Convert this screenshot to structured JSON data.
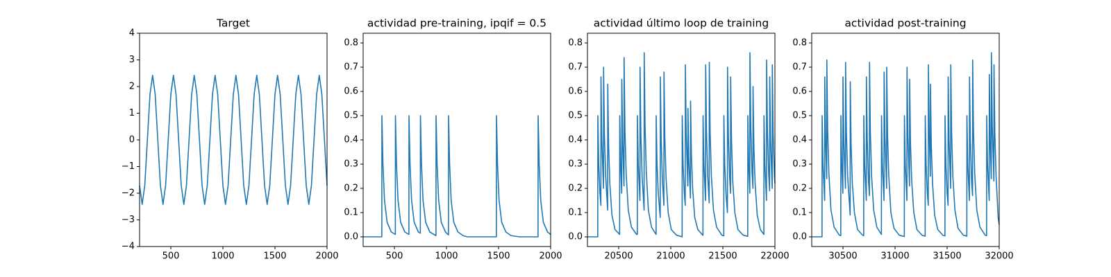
{
  "chart_data": [
    {
      "type": "line",
      "title": "Target",
      "color": "#1f77b4",
      "x": [
        200,
        225,
        250,
        275,
        300,
        325,
        350,
        375,
        400,
        425,
        450,
        475,
        500,
        525,
        550,
        575,
        600,
        625,
        650,
        675,
        700,
        725,
        750,
        775,
        800,
        825,
        850,
        875,
        900,
        925,
        950,
        975,
        1000,
        1025,
        1050,
        1075,
        1100,
        1125,
        1150,
        1175,
        1200,
        1225,
        1250,
        1275,
        1300,
        1325,
        1350,
        1375,
        1400,
        1425,
        1450,
        1475,
        1500,
        1525,
        1550,
        1575,
        1600,
        1625,
        1650,
        1675,
        1700,
        1725,
        1750,
        1775,
        1800,
        1825,
        1850,
        1875,
        1900,
        1925,
        1950,
        1975,
        2000
      ],
      "values": [
        -1.71,
        -2.42,
        -1.71,
        0,
        1.71,
        2.42,
        1.71,
        0,
        -1.71,
        -2.42,
        -1.71,
        0,
        1.71,
        2.42,
        1.71,
        0,
        -1.71,
        -2.42,
        -1.71,
        0,
        1.71,
        2.42,
        1.71,
        0,
        -1.71,
        -2.42,
        -1.71,
        0,
        1.71,
        2.42,
        1.71,
        0,
        -1.71,
        -2.42,
        -1.71,
        0,
        1.71,
        2.42,
        1.71,
        0,
        -1.71,
        -2.42,
        -1.71,
        0,
        1.71,
        2.42,
        1.71,
        0,
        -1.71,
        -2.42,
        -1.71,
        0,
        1.71,
        2.42,
        1.71,
        0,
        -1.71,
        -2.42,
        -1.71,
        0,
        1.71,
        2.42,
        1.71,
        0,
        -1.71,
        -2.42,
        -1.71,
        0,
        1.71,
        2.42,
        1.71,
        0,
        -1.71
      ],
      "xlim": [
        200,
        2000
      ],
      "xticks": [
        500,
        1000,
        1500,
        2000
      ],
      "ylim": [
        -4,
        4
      ],
      "yticks": [
        {
          "value": -4,
          "label": "−4"
        },
        {
          "value": -3,
          "label": "−3"
        },
        {
          "value": -2,
          "label": "−2"
        },
        {
          "value": -1,
          "label": "−1"
        },
        0,
        1,
        2,
        3,
        4
      ]
    },
    {
      "type": "line",
      "title": "actividad pre-training, ipqif = 0.5",
      "color": "#1f77b4",
      "x": [
        200,
        379,
        380,
        390,
        405,
        430,
        470,
        509,
        510,
        520,
        535,
        560,
        600,
        639,
        640,
        650,
        665,
        690,
        730,
        749,
        750,
        760,
        775,
        800,
        840,
        899,
        900,
        910,
        925,
        950,
        990,
        1019,
        1020,
        1030,
        1045,
        1070,
        1110,
        1160,
        1200,
        1479,
        1480,
        1490,
        1505,
        1530,
        1570,
        1620,
        1700,
        1879,
        1880,
        1890,
        1905,
        1930,
        1970,
        2000
      ],
      "values": [
        0,
        0,
        0.5,
        0.3,
        0.15,
        0.06,
        0.02,
        0.01,
        0.5,
        0.3,
        0.15,
        0.06,
        0.02,
        0.01,
        0.5,
        0.3,
        0.15,
        0.06,
        0.02,
        0.015,
        0.5,
        0.3,
        0.15,
        0.06,
        0.02,
        0.005,
        0.5,
        0.3,
        0.15,
        0.06,
        0.02,
        0.008,
        0.5,
        0.3,
        0.15,
        0.06,
        0.02,
        0.005,
        0,
        0,
        0.5,
        0.3,
        0.15,
        0.06,
        0.02,
        0.005,
        0,
        0,
        0.5,
        0.3,
        0.15,
        0.06,
        0.02,
        0.01
      ],
      "xlim": [
        200,
        2000
      ],
      "xticks": [
        500,
        1000,
        1500,
        2000
      ],
      "ylim": [
        -0.04,
        0.84
      ],
      "yticks": [
        {
          "value": 0,
          "label": "0.0"
        },
        0.1,
        0.2,
        0.3,
        0.4,
        0.5,
        0.6,
        0.7,
        0.8
      ]
    },
    {
      "type": "line",
      "title": "actividad último loop de training",
      "color": "#1f77b4",
      "x": [
        20200,
        20299,
        20300,
        20308,
        20320,
        20329,
        20330,
        20338,
        20354,
        20355,
        20363,
        20375,
        20394,
        20395,
        20403,
        20415,
        20435,
        20465,
        20509,
        20510,
        20518,
        20529,
        20530,
        20538,
        20551,
        20552,
        20560,
        20572,
        20592,
        20622,
        20672,
        20679,
        20680,
        20688,
        20704,
        20705,
        20713,
        20725,
        20744,
        20745,
        20753,
        20765,
        20785,
        20815,
        20859,
        20860,
        20868,
        20880,
        20899,
        20900,
        20908,
        20920,
        20934,
        20935,
        20943,
        20955,
        20975,
        21005,
        21055,
        21109,
        21110,
        21118,
        21130,
        21139,
        21140,
        21148,
        21164,
        21165,
        21173,
        21189,
        21190,
        21198,
        21210,
        21230,
        21260,
        21309,
        21310,
        21318,
        21334,
        21335,
        21343,
        21355,
        21369,
        21370,
        21378,
        21390,
        21410,
        21440,
        21490,
        21509,
        21510,
        21518,
        21530,
        21544,
        21545,
        21553,
        21565,
        21574,
        21575,
        21583,
        21595,
        21615,
        21645,
        21695,
        21739,
        21740,
        21748,
        21759,
        21760,
        21768,
        21780,
        21789,
        21790,
        21798,
        21810,
        21830,
        21860,
        21894,
        21895,
        21903,
        21919,
        21920,
        21928,
        21940,
        21949,
        21950,
        21958,
        21974,
        21975,
        21983,
        21995,
        22000
      ],
      "values": [
        0,
        0,
        0.5,
        0.3,
        0.18,
        0.13,
        0.66,
        0.4,
        0.2,
        0.7,
        0.42,
        0.25,
        0.11,
        0.63,
        0.38,
        0.22,
        0.09,
        0.03,
        0.01,
        0.5,
        0.3,
        0.18,
        0.65,
        0.39,
        0.21,
        0.74,
        0.44,
        0.26,
        0.11,
        0.04,
        0.01,
        0.01,
        0.5,
        0.3,
        0.15,
        0.7,
        0.42,
        0.25,
        0.11,
        0.76,
        0.46,
        0.27,
        0.11,
        0.04,
        0.01,
        0.5,
        0.3,
        0.18,
        0.08,
        0.66,
        0.4,
        0.23,
        0.13,
        0.68,
        0.41,
        0.24,
        0.1,
        0.03,
        0.007,
        0,
        0.5,
        0.3,
        0.18,
        0.13,
        0.71,
        0.43,
        0.21,
        0.53,
        0.32,
        0.16,
        0.56,
        0.34,
        0.2,
        0.08,
        0.03,
        0.006,
        0.5,
        0.3,
        0.15,
        0.71,
        0.43,
        0.25,
        0.14,
        0.72,
        0.43,
        0.25,
        0.11,
        0.04,
        0.007,
        0.004,
        0.5,
        0.3,
        0.18,
        0.1,
        0.7,
        0.42,
        0.25,
        0.18,
        0.66,
        0.4,
        0.23,
        0.1,
        0.03,
        0.007,
        0.002,
        0.5,
        0.3,
        0.18,
        0.76,
        0.46,
        0.27,
        0.2,
        0.62,
        0.37,
        0.22,
        0.09,
        0.03,
        0.01,
        0.5,
        0.3,
        0.15,
        0.73,
        0.44,
        0.26,
        0.19,
        0.66,
        0.4,
        0.2,
        0.71,
        0.43,
        0.25,
        0.22
      ],
      "xlim": [
        20200,
        22000
      ],
      "xticks": [
        20500,
        21000,
        21500,
        22000
      ],
      "ylim": [
        -0.04,
        0.84
      ],
      "yticks": [
        {
          "value": 0,
          "label": "0.0"
        },
        0.1,
        0.2,
        0.3,
        0.4,
        0.5,
        0.6,
        0.7,
        0.8
      ]
    },
    {
      "type": "line",
      "title": "actividad post-training",
      "color": "#1f77b4",
      "x": [
        30200,
        30299,
        30300,
        30308,
        30324,
        30325,
        30333,
        30344,
        30345,
        30353,
        30365,
        30385,
        30415,
        30465,
        30479,
        30480,
        30488,
        30499,
        30500,
        30508,
        30524,
        30525,
        30533,
        30545,
        30569,
        30570,
        30578,
        30590,
        30610,
        30640,
        30690,
        30699,
        30700,
        30708,
        30724,
        30725,
        30733,
        30745,
        30754,
        30755,
        30763,
        30775,
        30795,
        30825,
        30869,
        30870,
        30878,
        30894,
        30895,
        30903,
        30919,
        30920,
        30928,
        30940,
        30960,
        30990,
        31040,
        31089,
        31090,
        31098,
        31114,
        31115,
        31123,
        31139,
        31140,
        31148,
        31160,
        31180,
        31210,
        31260,
        31289,
        31290,
        31298,
        31310,
        31319,
        31320,
        31328,
        31339,
        31340,
        31348,
        31360,
        31380,
        31410,
        31460,
        31479,
        31480,
        31488,
        31500,
        31509,
        31510,
        31518,
        31534,
        31535,
        31543,
        31555,
        31575,
        31605,
        31655,
        31689,
        31690,
        31698,
        31714,
        31715,
        31723,
        31735,
        31744,
        31745,
        31753,
        31765,
        31785,
        31815,
        31865,
        31879,
        31880,
        31888,
        31904,
        31905,
        31913,
        31924,
        31925,
        31933,
        31949,
        31950,
        31958,
        31970,
        31990,
        32000
      ],
      "values": [
        0,
        0,
        0.5,
        0.3,
        0.15,
        0.66,
        0.4,
        0.24,
        0.73,
        0.44,
        0.26,
        0.11,
        0.04,
        0.007,
        0.005,
        0.5,
        0.3,
        0.18,
        0.66,
        0.4,
        0.2,
        0.72,
        0.43,
        0.25,
        0.09,
        0.64,
        0.38,
        0.22,
        0.1,
        0.03,
        0.006,
        0.005,
        0.5,
        0.3,
        0.15,
        0.66,
        0.4,
        0.23,
        0.17,
        0.72,
        0.43,
        0.25,
        0.11,
        0.04,
        0.01,
        0.5,
        0.3,
        0.15,
        0.68,
        0.41,
        0.2,
        0.7,
        0.42,
        0.25,
        0.1,
        0.035,
        0.007,
        0.001,
        0.5,
        0.3,
        0.15,
        0.7,
        0.42,
        0.21,
        0.65,
        0.39,
        0.23,
        0.1,
        0.03,
        0.006,
        0.003,
        0.5,
        0.3,
        0.18,
        0.13,
        0.71,
        0.43,
        0.25,
        0.63,
        0.38,
        0.22,
        0.09,
        0.03,
        0.006,
        0.004,
        0.5,
        0.3,
        0.18,
        0.13,
        0.66,
        0.4,
        0.2,
        0.71,
        0.43,
        0.25,
        0.11,
        0.035,
        0.007,
        0.003,
        0.5,
        0.3,
        0.15,
        0.66,
        0.4,
        0.23,
        0.17,
        0.73,
        0.44,
        0.26,
        0.11,
        0.04,
        0.007,
        0.005,
        0.5,
        0.3,
        0.15,
        0.67,
        0.4,
        0.24,
        0.76,
        0.46,
        0.23,
        0.71,
        0.43,
        0.25,
        0.08,
        0.05
      ],
      "xlim": [
        30200,
        32000
      ],
      "xticks": [
        30500,
        31000,
        31500,
        32000
      ],
      "ylim": [
        -0.04,
        0.84
      ],
      "yticks": [
        {
          "value": 0,
          "label": "0.0"
        },
        0.1,
        0.2,
        0.3,
        0.4,
        0.5,
        0.6,
        0.7,
        0.8
      ]
    }
  ]
}
